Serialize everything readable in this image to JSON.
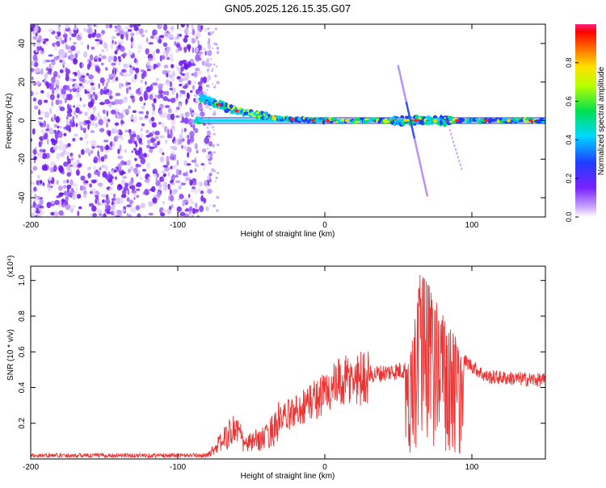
{
  "title": "GN05.2025.126.15.35.G07",
  "colorbar": {
    "label": "Normalized spectral amplitude",
    "ticks": [
      "0.0",
      "0.2",
      "0.4",
      "0.6",
      "0.8"
    ],
    "tick_values": [
      0.0,
      0.2,
      0.4,
      0.6,
      0.8
    ],
    "range": [
      0,
      1
    ],
    "colormap": "rainbow (purple-blue-cyan-green-yellow-orange-red-pink)"
  },
  "chart_data": [
    {
      "type": "heatmap",
      "xlabel": "Height of straight line (km)",
      "ylabel": "Frequency (Hz)",
      "xlim": [
        -200,
        150
      ],
      "ylim": [
        -50,
        50
      ],
      "xticks": [
        "-200",
        "-100",
        "0",
        "100"
      ],
      "xtick_values": [
        -200,
        -100,
        0,
        100
      ],
      "yticks": [
        "40",
        "20",
        "0",
        "-20",
        "-40"
      ],
      "ytick_values": [
        40,
        20,
        0,
        -20,
        -40
      ],
      "features": {
        "noise_region_x": [
          -200,
          -80
        ],
        "noise_color": "#7b2ff7",
        "ridge": [
          {
            "x": -85,
            "y": 12
          },
          {
            "x": -75,
            "y": 9
          },
          {
            "x": -60,
            "y": 5
          },
          {
            "x": -45,
            "y": 3
          },
          {
            "x": -30,
            "y": 1
          },
          {
            "x": 0,
            "y": 0
          },
          {
            "x": 150,
            "y": 0
          }
        ],
        "branch_line": {
          "x": [
            50,
            70
          ],
          "y": [
            28,
            -40
          ]
        }
      }
    },
    {
      "type": "line",
      "xlabel": "Height of straight line (km)",
      "ylabel": "SNR (10 * v/v)",
      "scale_label": "(x10⁴)",
      "xlim": [
        -200,
        150
      ],
      "ylim": [
        0,
        1.08
      ],
      "xticks": [
        "-200",
        "-100",
        "0",
        "100"
      ],
      "xtick_values": [
        -200,
        -100,
        0,
        100
      ],
      "yticks": [
        "0.2",
        "0.4",
        "0.6",
        "0.8",
        "1.0"
      ],
      "ytick_values": [
        0.2,
        0.4,
        0.6,
        0.8,
        1.0
      ],
      "color": "#ee3333",
      "envelope": [
        {
          "x": -200,
          "y": 0.02
        },
        {
          "x": -80,
          "y": 0.02
        },
        {
          "x": -75,
          "y": 0.06
        },
        {
          "x": -60,
          "y": 0.18
        },
        {
          "x": -55,
          "y": 0.08
        },
        {
          "x": -40,
          "y": 0.12
        },
        {
          "x": -30,
          "y": 0.22
        },
        {
          "x": -10,
          "y": 0.32
        },
        {
          "x": 10,
          "y": 0.42
        },
        {
          "x": 30,
          "y": 0.47
        },
        {
          "x": 55,
          "y": 0.5
        },
        {
          "x": 60,
          "y": 0.7
        },
        {
          "x": 65,
          "y": 1.05
        },
        {
          "x": 80,
          "y": 0.8
        },
        {
          "x": 95,
          "y": 0.55
        },
        {
          "x": 110,
          "y": 0.46
        },
        {
          "x": 150,
          "y": 0.44
        }
      ]
    }
  ]
}
